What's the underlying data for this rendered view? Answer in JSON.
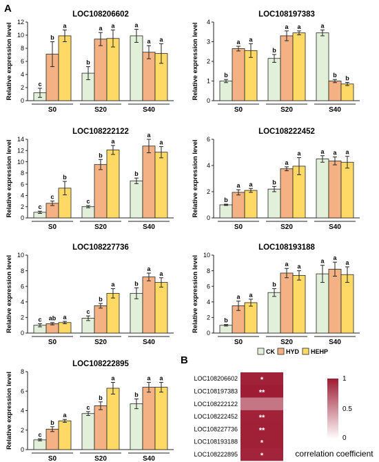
{
  "panel_labels": {
    "a": "A",
    "b": "B"
  },
  "colors": {
    "CK": "#e2f0d9",
    "HYD": "#f4b183",
    "HEHP": "#ffd966",
    "stroke": "#222222",
    "heat_high": "#9e1b32",
    "heat_low": "#ffffff"
  },
  "chart_data": [
    {
      "type": "bar",
      "title": "LOC108206602",
      "ylabel": "Relative expression level",
      "categories": [
        "S0",
        "S20",
        "S40"
      ],
      "ylim": [
        0,
        12
      ],
      "yticks": [
        0,
        2,
        4,
        6,
        8,
        10,
        12
      ],
      "series": [
        {
          "name": "CK",
          "values": [
            1.2,
            4.2,
            9.9
          ],
          "errors": [
            0.7,
            1.0,
            1.0
          ],
          "letters": [
            "c",
            "b",
            "a"
          ]
        },
        {
          "name": "HYD",
          "values": [
            7.1,
            9.4,
            7.4
          ],
          "errors": [
            1.9,
            1.0,
            1.0
          ],
          "letters": [
            "b",
            "a",
            "a"
          ]
        },
        {
          "name": "HEHP",
          "values": [
            9.9,
            9.5,
            7.2
          ],
          "errors": [
            0.9,
            1.3,
            1.5
          ],
          "letters": [
            "a",
            "a",
            "a"
          ]
        }
      ]
    },
    {
      "type": "bar",
      "title": "LOC108197383",
      "ylabel": "Relative expression level",
      "categories": [
        "S0",
        "S20",
        "S40"
      ],
      "ylim": [
        0,
        4
      ],
      "yticks": [
        0,
        1,
        2,
        3,
        4
      ],
      "series": [
        {
          "name": "CK",
          "values": [
            1.0,
            2.15,
            3.45
          ],
          "errors": [
            0.08,
            0.2,
            0.15
          ],
          "letters": [
            "b",
            "b",
            "a"
          ]
        },
        {
          "name": "HYD",
          "values": [
            2.65,
            3.3,
            1.0
          ],
          "errors": [
            0.12,
            0.25,
            0.08
          ],
          "letters": [
            "a",
            "a",
            "b"
          ]
        },
        {
          "name": "HEHP",
          "values": [
            2.55,
            3.45,
            0.85
          ],
          "errors": [
            0.35,
            0.1,
            0.08
          ],
          "letters": [
            "a",
            "a",
            "b"
          ]
        }
      ]
    },
    {
      "type": "bar",
      "title": "LOC108222122",
      "ylabel": "Relative expression level",
      "categories": [
        "S0",
        "S20",
        "S40"
      ],
      "ylim": [
        0,
        14
      ],
      "yticks": [
        0,
        2,
        4,
        6,
        8,
        10,
        12,
        14
      ],
      "series": [
        {
          "name": "CK",
          "values": [
            1.0,
            2.0,
            6.6
          ],
          "errors": [
            0.2,
            0.2,
            0.5
          ],
          "letters": [
            "c",
            "c",
            "b"
          ]
        },
        {
          "name": "HYD",
          "values": [
            2.6,
            9.5,
            12.8
          ],
          "errors": [
            0.4,
            0.9,
            1.2
          ],
          "letters": [
            "c",
            "b",
            "a"
          ]
        },
        {
          "name": "HEHP",
          "values": [
            5.3,
            12.1,
            11.7
          ],
          "errors": [
            1.2,
            0.8,
            1.0
          ],
          "letters": [
            "b",
            "a",
            "a"
          ]
        }
      ]
    },
    {
      "type": "bar",
      "title": "LOC108222452",
      "ylabel": "Relative expression level",
      "categories": [
        "S0",
        "S20",
        "S40"
      ],
      "ylim": [
        0,
        6
      ],
      "yticks": [
        0,
        2,
        4,
        6
      ],
      "series": [
        {
          "name": "CK",
          "values": [
            1.0,
            2.2,
            4.5
          ],
          "errors": [
            0.05,
            0.2,
            0.25
          ],
          "letters": [
            "b",
            "b",
            "a"
          ]
        },
        {
          "name": "HYD",
          "values": [
            1.95,
            3.75,
            4.35
          ],
          "errors": [
            0.2,
            0.15,
            0.3
          ],
          "letters": [
            "a",
            "a",
            "a"
          ]
        },
        {
          "name": "HEHP",
          "values": [
            2.1,
            3.95,
            4.25
          ],
          "errors": [
            0.15,
            0.65,
            0.45
          ],
          "letters": [
            "a",
            "a",
            "a"
          ]
        }
      ]
    },
    {
      "type": "bar",
      "title": "LOC108227736",
      "ylabel": "Relative expression level",
      "categories": [
        "S0",
        "S20",
        "S40"
      ],
      "ylim": [
        0,
        10
      ],
      "yticks": [
        0,
        2,
        4,
        6,
        8,
        10
      ],
      "series": [
        {
          "name": "CK",
          "values": [
            1.0,
            1.9,
            5.1
          ],
          "errors": [
            0.2,
            0.3,
            0.7
          ],
          "letters": [
            "c",
            "c",
            "b"
          ]
        },
        {
          "name": "HYD",
          "values": [
            1.2,
            3.5,
            7.2
          ],
          "errors": [
            0.15,
            0.3,
            0.5
          ],
          "letters": [
            "ab",
            "b",
            "a"
          ]
        },
        {
          "name": "HEHP",
          "values": [
            1.35,
            5.1,
            6.5
          ],
          "errors": [
            0.15,
            0.6,
            0.6
          ],
          "letters": [
            "a",
            "a",
            "a"
          ]
        }
      ]
    },
    {
      "type": "bar",
      "title": "LOC108193188",
      "ylabel": "Relative expression level",
      "categories": [
        "S0",
        "S20",
        "S40"
      ],
      "ylim": [
        0,
        10
      ],
      "yticks": [
        0,
        2,
        4,
        6,
        8,
        10
      ],
      "series": [
        {
          "name": "CK",
          "values": [
            1.0,
            5.2,
            7.6
          ],
          "errors": [
            0.1,
            0.5,
            1.1
          ],
          "letters": [
            "b",
            "b",
            "a"
          ]
        },
        {
          "name": "HYD",
          "values": [
            3.5,
            7.7,
            8.2
          ],
          "errors": [
            0.6,
            0.6,
            0.9
          ],
          "letters": [
            "a",
            "a",
            "a"
          ]
        },
        {
          "name": "HEHP",
          "values": [
            3.9,
            7.4,
            7.5
          ],
          "errors": [
            0.45,
            0.6,
            1.0
          ],
          "letters": [
            "a",
            "a",
            "a"
          ]
        }
      ]
    },
    {
      "type": "bar",
      "title": "LOC108222895",
      "ylabel": "Relative expression level",
      "categories": [
        "S0",
        "S20",
        "S40"
      ],
      "ylim": [
        0,
        8
      ],
      "yticks": [
        0,
        2,
        4,
        6,
        8
      ],
      "series": [
        {
          "name": "CK",
          "values": [
            1.0,
            3.7,
            4.7
          ],
          "errors": [
            0.1,
            0.2,
            0.5
          ],
          "letters": [
            "c",
            "c",
            "b"
          ]
        },
        {
          "name": "HYD",
          "values": [
            2.1,
            4.5,
            6.4
          ],
          "errors": [
            0.25,
            0.4,
            0.5
          ],
          "letters": [
            "b",
            "b",
            "a"
          ]
        },
        {
          "name": "HEHP",
          "values": [
            2.95,
            6.3,
            6.4
          ],
          "errors": [
            0.15,
            0.6,
            0.5
          ],
          "letters": [
            "a",
            "a",
            "a"
          ]
        }
      ]
    },
    {
      "type": "heatmap",
      "rows": [
        "LOC108206602",
        "LOC108197383",
        "LOC108222122",
        "LOC108222452",
        "LOC108227736",
        "LOC108193188",
        "LOC108222895"
      ],
      "values": [
        0.97,
        0.99,
        0.6,
        0.97,
        0.98,
        0.98,
        0.96
      ],
      "significance": [
        "*",
        "**",
        "",
        "**",
        "**",
        "*",
        "*"
      ],
      "scale_ticks": [
        "1",
        "0.5",
        "0"
      ],
      "scale_label": "correlation coefficient"
    }
  ],
  "legend": [
    {
      "key": "CK",
      "label": "CK"
    },
    {
      "key": "HYD",
      "label": "HYD"
    },
    {
      "key": "HEHP",
      "label": "HEHP"
    }
  ]
}
